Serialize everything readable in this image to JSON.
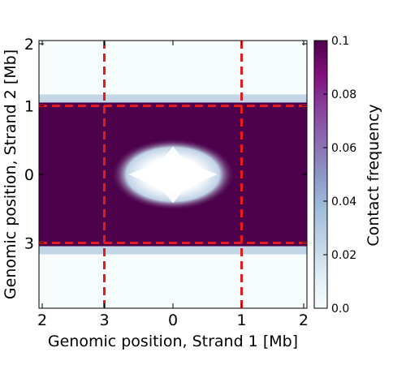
{
  "chart_data": {
    "type": "heatmap",
    "xlabel": "Genomic position, Strand 1 [Mb]",
    "ylabel": "Genomic position, Strand 2 [Mb]",
    "x_tick_labels": [
      "2",
      "3",
      "0",
      "1",
      "2"
    ],
    "y_tick_labels": [
      "2",
      "1",
      "0",
      "3"
    ],
    "colorbar": {
      "label": "Contact frequency",
      "range": [
        0.0,
        0.1
      ],
      "tick_labels": [
        "0.0",
        "0.02",
        "0.04",
        "0.06",
        "0.08",
        "0.1"
      ],
      "colormap": "BuPu",
      "colors": [
        "#f7fcfd",
        "#e0ecf4",
        "#bfd3e6",
        "#9ebcda",
        "#8c96c6",
        "#8c6bb1",
        "#88419d",
        "#810f7c",
        "#4d004b"
      ]
    },
    "dashed_lines": {
      "color": "#e41a1c",
      "x_positions": [
        -1.05,
        1.05
      ],
      "y_positions": [
        1.05,
        -1.05
      ]
    },
    "regions": {
      "saturated_band_y": [
        -1.1,
        1.1
      ],
      "saturated_value": 0.1,
      "background_value": 0.0,
      "central_hole": {
        "center": [
          0,
          0
        ],
        "half_width_x": 0.95,
        "half_height_y": 0.55,
        "value": 0.0
      }
    },
    "x_range": [
      -2.05,
      2.05
    ],
    "y_range": [
      -2.05,
      2.05
    ]
  }
}
